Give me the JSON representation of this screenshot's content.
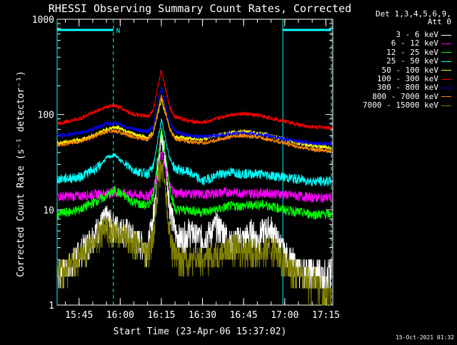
{
  "chart_data": {
    "type": "line",
    "title": "RHESSI Observing Summary Count Rates, Corrected",
    "ylabel": "Corrected Count Rate (s⁻¹ detector⁻¹)",
    "xlabel": "Start Time (23-Apr-06 15:37:02)",
    "yscale": "log",
    "ylim": [
      1,
      1000
    ],
    "xlim_minutes_from_1530": [
      7.0,
      107.5
    ],
    "y_ticks": [
      "1",
      "10",
      "100",
      "1000"
    ],
    "x_ticks": [
      {
        "label": "15:45",
        "minute": 15
      },
      {
        "label": "16:00",
        "minute": 30
      },
      {
        "label": "16:15",
        "minute": 45
      },
      {
        "label": "16:30",
        "minute": 60
      },
      {
        "label": "16:45",
        "minute": 75
      },
      {
        "label": "17:00",
        "minute": 90
      },
      {
        "label": "17:15",
        "minute": 105
      }
    ],
    "legend_header": "Det 1,3,4,5,6,9,\n        Att 0",
    "night_marker": "N",
    "series": [
      {
        "name": "3 - 6 keV",
        "color": "#ffffff",
        "x": [
          7,
          10,
          15,
          20,
          22,
          25,
          27,
          30,
          33,
          35,
          38,
          40,
          42,
          43,
          44,
          45,
          46,
          47,
          48,
          49,
          50,
          52,
          55,
          60,
          63,
          65,
          68,
          70,
          73,
          75,
          78,
          80,
          82,
          85,
          88,
          90,
          95,
          100,
          104,
          107
        ],
        "y": [
          2.5,
          2.3,
          3.5,
          5.5,
          6.5,
          8.5,
          7,
          6.5,
          6,
          5,
          4.5,
          4,
          8,
          18,
          40,
          55,
          45,
          25,
          12,
          8,
          6,
          5,
          6,
          5,
          6,
          7,
          6,
          4.5,
          5,
          5,
          6,
          5,
          6,
          6.5,
          4.5,
          3.5,
          2.4,
          2.3,
          2.2,
          2.1
        ]
      },
      {
        "name": "6 - 12 keV",
        "color": "#ff00ff",
        "x": [
          7,
          15,
          25,
          28,
          30,
          35,
          40,
          42,
          44,
          45,
          46,
          48,
          50,
          55,
          60,
          65,
          70,
          75,
          80,
          85,
          90,
          95,
          100,
          107
        ],
        "y": [
          14,
          14,
          15,
          15.5,
          15,
          14.5,
          14,
          16,
          28,
          42,
          30,
          18,
          15,
          15,
          14.5,
          15,
          15.5,
          15,
          15,
          15,
          14.5,
          14,
          13.5,
          13.5
        ]
      },
      {
        "name": "12 - 25 keV",
        "color": "#00ff00",
        "x": [
          7,
          15,
          25,
          28,
          30,
          35,
          40,
          42,
          44,
          45,
          46,
          48,
          50,
          55,
          60,
          65,
          70,
          75,
          80,
          85,
          90,
          95,
          100,
          107
        ],
        "y": [
          9,
          10,
          14,
          16,
          15,
          12,
          11,
          14,
          38,
          75,
          48,
          18,
          10,
          10,
          9.5,
          10,
          11,
          11,
          11.5,
          11,
          10,
          9.5,
          9,
          9
        ]
      },
      {
        "name": "25 - 50 keV",
        "color": "#00ffff",
        "x": [
          7,
          15,
          22,
          25,
          28,
          30,
          35,
          40,
          42,
          44,
          45,
          46,
          48,
          50,
          55,
          60,
          65,
          70,
          75,
          80,
          85,
          90,
          95,
          100,
          107
        ],
        "y": [
          21,
          22,
          28,
          35,
          38,
          33,
          26,
          24,
          28,
          60,
          88,
          65,
          35,
          27,
          25,
          20,
          23,
          25,
          24,
          24,
          23,
          22,
          21,
          20,
          20
        ]
      },
      {
        "name": "50 - 100 keV",
        "color": "#ffff00",
        "x": [
          7,
          15,
          20,
          25,
          28,
          30,
          35,
          40,
          42,
          44,
          45,
          46,
          48,
          50,
          55,
          60,
          65,
          70,
          75,
          80,
          85,
          90,
          95,
          100,
          107
        ],
        "y": [
          50,
          54,
          60,
          70,
          74,
          72,
          62,
          57,
          65,
          110,
          145,
          115,
          72,
          58,
          56,
          55,
          60,
          65,
          66,
          64,
          60,
          55,
          50,
          47,
          45
        ]
      },
      {
        "name": "100 - 300 keV",
        "color": "#ff0000",
        "x": [
          7,
          15,
          20,
          25,
          28,
          30,
          35,
          40,
          42,
          44,
          45,
          46,
          48,
          50,
          55,
          60,
          65,
          70,
          75,
          80,
          85,
          90,
          95,
          100,
          107
        ],
        "y": [
          80,
          90,
          105,
          120,
          125,
          118,
          100,
          95,
          110,
          210,
          290,
          220,
          120,
          95,
          86,
          82,
          90,
          100,
          102,
          98,
          92,
          85,
          78,
          74,
          73
        ]
      },
      {
        "name": "300 - 800 keV",
        "color": "#0000ff",
        "x": [
          7,
          15,
          20,
          25,
          28,
          30,
          35,
          40,
          42,
          44,
          45,
          46,
          48,
          50,
          55,
          60,
          65,
          70,
          75,
          80,
          85,
          90,
          95,
          100,
          107
        ],
        "y": [
          60,
          64,
          70,
          80,
          82,
          78,
          70,
          66,
          74,
          150,
          195,
          150,
          82,
          66,
          60,
          58,
          60,
          63,
          64,
          62,
          59,
          55,
          52,
          50,
          49
        ]
      },
      {
        "name": "800 - 7000 keV",
        "color": "#ff8800",
        "x": [
          7,
          15,
          20,
          25,
          28,
          30,
          35,
          40,
          42,
          44,
          45,
          46,
          48,
          50,
          55,
          60,
          65,
          70,
          75,
          80,
          85,
          90,
          95,
          100,
          107
        ],
        "y": [
          48,
          52,
          58,
          66,
          68,
          65,
          58,
          55,
          62,
          120,
          160,
          125,
          70,
          56,
          52,
          50,
          54,
          58,
          60,
          58,
          54,
          50,
          46,
          43,
          41
        ]
      },
      {
        "name": "7000 - 15000 keV",
        "color": "#808000",
        "x": [
          7,
          10,
          15,
          20,
          22,
          25,
          27,
          30,
          33,
          35,
          38,
          40,
          42,
          43,
          44,
          45,
          46,
          47,
          48,
          49,
          50,
          52,
          55,
          60,
          65,
          70,
          75,
          80,
          85,
          88,
          90,
          95,
          100,
          104,
          107
        ],
        "y": [
          2.5,
          2.3,
          3.2,
          4.5,
          5.5,
          6.5,
          6,
          5.5,
          5,
          4.5,
          4,
          3.5,
          5,
          12,
          22,
          28,
          22,
          12,
          6,
          4,
          3.5,
          3,
          3,
          3,
          3.5,
          4,
          4,
          3.5,
          4,
          3.5,
          2.6,
          2.2,
          1.8,
          1.5,
          1.3
        ]
      }
    ],
    "night_intervals": [
      {
        "start_minute": 7.0,
        "end_minute": 27.5
      },
      {
        "start_minute": 89.3,
        "end_minute": 107.0
      }
    ]
  },
  "footer_timestamp": "15-Oct-2021 01:32"
}
